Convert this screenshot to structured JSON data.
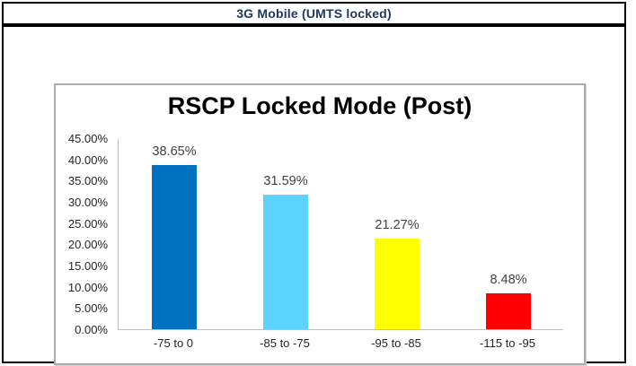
{
  "header": {
    "title": "3G Mobile (UMTS locked)",
    "text_color": "#1F3864"
  },
  "chart_data": {
    "type": "bar",
    "title": "RSCP Locked Mode (Post)",
    "categories": [
      "-75 to 0",
      "-85 to -75",
      "-95 to -85",
      "-115 to -95"
    ],
    "values": [
      38.65,
      31.59,
      21.27,
      8.48
    ],
    "value_labels": [
      "38.65%",
      "31.59%",
      "21.27%",
      "8.48%"
    ],
    "bar_colors": [
      "#0070C0",
      "#5BD2FF",
      "#FFFF00",
      "#FF0000"
    ],
    "xlabel": "",
    "ylabel": "",
    "ylim": [
      0,
      45
    ],
    "ytick_step": 5,
    "ytick_labels": [
      "45.00%",
      "40.00%",
      "35.00%",
      "30.00%",
      "25.00%",
      "20.00%",
      "15.00%",
      "10.00%",
      "5.00%",
      "0.00%"
    ],
    "grid": false,
    "legend": "none",
    "colors": {
      "axis_line": "#BFBFBF",
      "tick_label": "#262626",
      "value_label": "#3F3F3F",
      "title": "#000000"
    }
  }
}
